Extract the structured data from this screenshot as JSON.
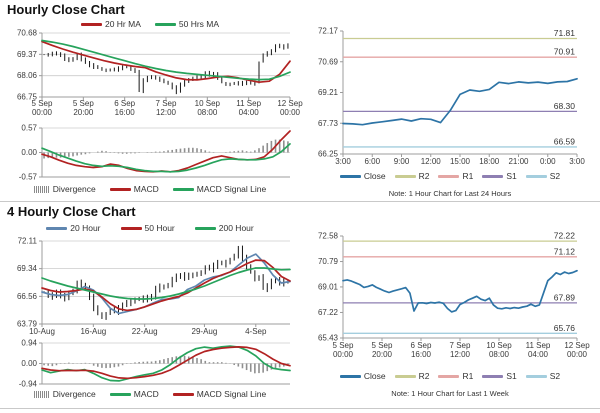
{
  "page": {
    "hourly_title": "Hourly Close Chart",
    "four_hourly_title": "4 Hourly Close Chart",
    "hourly_note": "Note: 1 Hour Chart for Last 24 Hours",
    "weekly_note": "Note: 1 Hour Chart for Last 1 Week"
  },
  "colors": {
    "red": "#b22222",
    "green": "#27a35c",
    "steel": "#5f86b0",
    "close": "#2d74a6",
    "r2": "#c9cc92",
    "r1": "#e4a6a4",
    "s1": "#8e7fb2",
    "s2": "#a4cede",
    "bars": "#8f8f8f",
    "candle": "#161616",
    "axis": "#9c9c9c",
    "grid": "#cccccc",
    "text": "#3a3a3a"
  },
  "chart_data": [
    {
      "id": "hourly-price",
      "type": "candlestick",
      "title": "Hourly Close Chart",
      "ylim": [
        66.75,
        70.68
      ],
      "yticks": [
        70.68,
        69.37,
        68.06,
        66.75
      ],
      "grid": true,
      "xticklabels": [
        [
          "5 Sep",
          "00:00"
        ],
        [
          "5 Sep",
          "20:00"
        ],
        [
          "6 Sep",
          "16:00"
        ],
        [
          "7 Sep",
          "12:00"
        ],
        [
          "10 Sep",
          "08:00"
        ],
        [
          "11 Sep",
          "04:00"
        ],
        [
          "12 Sep",
          "00:00"
        ]
      ],
      "legend": [
        {
          "label": "20 Hr MA",
          "color": "red"
        },
        {
          "label": "50 Hrs MA",
          "color": "green"
        }
      ],
      "wick": 0.14,
      "closes": [
        69.35,
        69.38,
        69.42,
        69.36,
        69.3,
        69.1,
        68.98,
        69.15,
        69.38,
        69.05,
        68.82,
        68.7,
        68.6,
        68.52,
        68.46,
        68.42,
        68.4,
        68.44,
        68.5,
        68.56,
        68.6,
        68.48,
        68.35,
        67.1,
        67.8,
        67.92,
        67.95,
        67.9,
        67.82,
        67.7,
        67.55,
        67.35,
        67.05,
        67.5,
        67.75,
        67.8,
        67.92,
        68.05,
        67.95,
        68.22,
        68.06,
        68.15,
        67.92,
        67.62,
        67.55,
        67.58,
        67.55,
        67.6,
        67.57,
        67.62,
        67.58,
        67.7,
        68.9,
        69.35,
        69.45,
        69.55,
        69.85,
        69.9,
        69.8,
        70.0
      ],
      "series": [
        {
          "name": "20 Hr MA",
          "color": "red",
          "values": [
            70.15,
            69.92,
            69.7,
            69.5,
            69.32,
            69.15,
            68.98,
            68.84,
            68.72,
            68.62,
            68.55,
            68.3,
            68.1,
            67.92,
            67.82,
            67.8,
            67.88,
            67.98,
            68.02,
            67.92,
            67.78,
            67.66,
            67.72,
            68.15,
            68.95
          ]
        },
        {
          "name": "50 Hrs MA",
          "color": "green",
          "values": [
            70.22,
            70.12,
            70.0,
            69.85,
            69.68,
            69.5,
            69.32,
            69.15,
            68.98,
            68.8,
            68.64,
            68.5,
            68.38,
            68.28,
            68.2,
            68.14,
            68.08,
            68.02,
            67.96,
            67.9,
            67.85,
            67.82,
            67.84,
            68.02,
            68.28
          ]
        }
      ]
    },
    {
      "id": "hourly-macd",
      "type": "macd",
      "ylim": [
        -0.57,
        0.57
      ],
      "yticks": [
        0.57,
        0,
        -0.57
      ],
      "grid": true,
      "legend": [
        {
          "label": "Divergence",
          "color": "bars",
          "swatch": "block"
        },
        {
          "label": "MACD",
          "color": "red"
        },
        {
          "label": "MACD Signal Line",
          "color": "green"
        }
      ],
      "divergence": [
        -0.14,
        -0.13,
        -0.12,
        -0.12,
        -0.12,
        -0.11,
        -0.1,
        -0.09,
        -0.07,
        -0.05,
        -0.04,
        -0.02,
        0.0,
        0.02,
        0.04,
        0.03,
        0.01,
        -0.01,
        -0.02,
        -0.03,
        -0.03,
        -0.02,
        -0.02,
        -0.01,
        0.0,
        0.01,
        0.01,
        0.02,
        0.02,
        0.03,
        0.05,
        0.06,
        0.08,
        0.09,
        0.1,
        0.11,
        0.11,
        0.1,
        0.08,
        0.05,
        0.02,
        0.01,
        0.0,
        0.0,
        0.01,
        0.02,
        0.03,
        0.04,
        0.05,
        0.03,
        0.02,
        0.05,
        0.1,
        0.16,
        0.22,
        0.27,
        0.3,
        0.3,
        0.28,
        0.26
      ],
      "series": [
        {
          "name": "MACD",
          "color": "red",
          "values": [
            -0.04,
            -0.1,
            -0.18,
            -0.25,
            -0.3,
            -0.33,
            -0.35,
            -0.33,
            -0.27,
            -0.3,
            -0.37,
            -0.42,
            -0.44,
            -0.45,
            -0.43,
            -0.45,
            -0.42,
            -0.36,
            -0.28,
            -0.2,
            -0.12,
            -0.08,
            -0.12,
            -0.16,
            -0.17,
            -0.16,
            -0.1,
            0.08,
            0.3,
            0.5
          ]
        },
        {
          "name": "MACD Signal Line",
          "color": "green",
          "values": [
            0.1,
            0.02,
            -0.06,
            -0.13,
            -0.2,
            -0.26,
            -0.3,
            -0.32,
            -0.31,
            -0.32,
            -0.35,
            -0.39,
            -0.42,
            -0.44,
            -0.44,
            -0.45,
            -0.44,
            -0.41,
            -0.36,
            -0.3,
            -0.23,
            -0.17,
            -0.15,
            -0.16,
            -0.17,
            -0.17,
            -0.15,
            -0.1,
            0.02,
            0.2
          ]
        }
      ]
    },
    {
      "id": "pivot-24h",
      "type": "line",
      "ylim": [
        66.25,
        72.17
      ],
      "yticks": [
        72.17,
        70.69,
        69.21,
        67.73,
        66.25
      ],
      "grid": false,
      "xticklabels": [
        "3:00",
        "6:00",
        "9:00",
        "12:00",
        "15:00",
        "18:00",
        "21:00",
        "0:00",
        "3:00"
      ],
      "pivots": [
        {
          "name": "R2",
          "value": 71.81,
          "color": "r2"
        },
        {
          "name": "R1",
          "value": 70.91,
          "color": "r1"
        },
        {
          "name": "S1",
          "value": 68.3,
          "color": "s1"
        },
        {
          "name": "S2",
          "value": 66.59,
          "color": "s2"
        }
      ],
      "legend": [
        {
          "label": "Close",
          "color": "close"
        },
        {
          "label": "R2",
          "color": "r2"
        },
        {
          "label": "R1",
          "color": "r1"
        },
        {
          "label": "S1",
          "color": "s1"
        },
        {
          "label": "S2",
          "color": "s2"
        }
      ],
      "series": [
        {
          "name": "Close",
          "color": "close",
          "values": [
            67.72,
            67.7,
            67.66,
            67.74,
            67.8,
            67.86,
            67.93,
            67.84,
            67.95,
            67.92,
            67.76,
            68.35,
            69.12,
            69.33,
            69.27,
            69.36,
            69.7,
            69.64,
            69.72,
            69.67,
            69.71,
            69.65,
            69.72,
            69.74,
            69.87
          ]
        }
      ],
      "note": "Note: 1 Hour Chart for Last 24 Hours"
    },
    {
      "id": "fourh-price",
      "type": "candlestick",
      "title": "4 Hourly Close Chart",
      "ylim": [
        63.79,
        72.11
      ],
      "yticks": [
        72.11,
        69.34,
        66.56,
        63.79
      ],
      "grid": true,
      "xticklabels": [
        "10-Aug",
        "16-Aug",
        "22-Aug",
        "29-Aug",
        "4-Sep"
      ],
      "xtickpos": [
        0,
        0.207,
        0.414,
        0.655,
        0.862
      ],
      "legend": [
        {
          "label": "20 Hour",
          "color": "steel"
        },
        {
          "label": "50 Hour",
          "color": "red"
        },
        {
          "label": "200 Hour",
          "color": "green"
        }
      ],
      "wick": 0.35,
      "closes": [
        67.0,
        66.7,
        66.55,
        66.9,
        66.6,
        66.4,
        66.85,
        67.2,
        68.0,
        67.6,
        67.3,
        66.5,
        65.4,
        64.8,
        64.55,
        64.9,
        65.2,
        65.05,
        65.35,
        65.6,
        65.9,
        66.15,
        66.35,
        66.2,
        66.4,
        66.3,
        66.45,
        67.3,
        67.6,
        67.5,
        67.8,
        68.3,
        68.55,
        68.4,
        68.65,
        68.55,
        68.75,
        68.95,
        69.0,
        69.4,
        69.3,
        69.6,
        69.9,
        69.75,
        70.1,
        70.3,
        70.6,
        71.3,
        70.4,
        69.5,
        69.0,
        68.4,
        68.6,
        67.3,
        67.6,
        68.0,
        68.2,
        67.9,
        68.15,
        68.05
      ],
      "series": [
        {
          "name": "20 Hour",
          "color": "steel",
          "values": [
            67.0,
            66.75,
            66.65,
            66.75,
            67.1,
            67.55,
            67.2,
            66.4,
            65.35,
            64.85,
            65.05,
            65.25,
            65.5,
            65.9,
            66.25,
            66.3,
            66.45,
            67.25,
            67.6,
            68.2,
            68.5,
            68.65,
            69.0,
            69.7,
            70.4,
            70.8,
            69.9,
            68.7,
            67.9,
            68.05
          ]
        },
        {
          "name": "50 Hour",
          "color": "red",
          "values": [
            67.4,
            67.15,
            67.0,
            67.05,
            67.15,
            67.3,
            67.1,
            66.5,
            65.8,
            65.3,
            65.15,
            65.25,
            65.5,
            65.8,
            66.1,
            66.35,
            66.55,
            66.9,
            67.4,
            67.9,
            68.35,
            68.7,
            69.0,
            69.4,
            69.85,
            70.2,
            70.15,
            69.45,
            68.55,
            68.1
          ]
        },
        {
          "name": "200 Hour",
          "color": "green",
          "values": [
            68.4,
            68.1,
            67.85,
            67.6,
            67.4,
            67.2,
            67.0,
            66.8,
            66.6,
            66.45,
            66.35,
            66.3,
            66.3,
            66.35,
            66.45,
            66.6,
            66.8,
            67.05,
            67.3,
            67.6,
            67.95,
            68.3,
            68.65,
            68.95,
            69.2,
            69.4,
            69.4,
            69.3,
            69.22,
            69.25
          ]
        }
      ]
    },
    {
      "id": "fourh-macd",
      "type": "macd",
      "ylim": [
        -0.94,
        0.94
      ],
      "yticks": [
        0.94,
        0,
        -0.94
      ],
      "grid": true,
      "legend": [
        {
          "label": "Divergence",
          "color": "bars",
          "swatch": "block"
        },
        {
          "label": "MACD",
          "color": "green"
        },
        {
          "label": "MACD Signal Line",
          "color": "red"
        }
      ],
      "divergence": [
        -0.08,
        -0.1,
        -0.12,
        -0.08,
        -0.02,
        0.02,
        0.04,
        0.02,
        -0.01,
        0.02,
        0.03,
        -0.02,
        -0.1,
        -0.15,
        -0.2,
        -0.21,
        -0.2,
        -0.17,
        -0.14,
        -0.08,
        -0.02,
        0.02,
        0.05,
        0.07,
        0.08,
        0.09,
        0.09,
        0.12,
        0.15,
        0.2,
        0.25,
        0.29,
        0.33,
        0.35,
        0.35,
        0.32,
        0.3,
        0.25,
        0.2,
        0.12,
        0.06,
        0.06,
        0.06,
        0.06,
        0.03,
        -0.01,
        -0.07,
        -0.14,
        -0.22,
        -0.3,
        -0.38,
        -0.45,
        -0.44,
        -0.42,
        -0.35,
        -0.28,
        -0.22,
        -0.18,
        -0.14,
        -0.1
      ],
      "series": [
        {
          "name": "MACD",
          "color": "green",
          "values": [
            -0.3,
            -0.42,
            -0.35,
            -0.28,
            -0.33,
            -0.28,
            -0.45,
            -0.65,
            -0.78,
            -0.8,
            -0.7,
            -0.6,
            -0.52,
            -0.45,
            -0.3,
            -0.05,
            0.25,
            0.5,
            0.68,
            0.75,
            0.7,
            0.76,
            0.8,
            0.75,
            0.6,
            0.35,
            0.0,
            -0.22,
            -0.28,
            -0.32
          ]
        },
        {
          "name": "MACD Signal Line",
          "color": "red",
          "values": [
            -0.22,
            -0.3,
            -0.33,
            -0.32,
            -0.32,
            -0.31,
            -0.35,
            -0.45,
            -0.58,
            -0.66,
            -0.68,
            -0.65,
            -0.6,
            -0.54,
            -0.45,
            -0.3,
            -0.08,
            0.15,
            0.38,
            0.55,
            0.64,
            0.7,
            0.74,
            0.76,
            0.74,
            0.65,
            0.45,
            0.2,
            0.0,
            -0.1
          ]
        }
      ]
    },
    {
      "id": "pivot-1w",
      "type": "line",
      "ylim": [
        65.43,
        72.58
      ],
      "yticks": [
        72.58,
        70.79,
        69.01,
        67.22,
        65.43
      ],
      "grid": false,
      "xticklabels": [
        [
          "5 Sep",
          "00:00"
        ],
        [
          "5 Sep",
          "20:00"
        ],
        [
          "6 Sep",
          "16:00"
        ],
        [
          "7 Sep",
          "12:00"
        ],
        [
          "10 Sep",
          "08:00"
        ],
        [
          "11 Sep",
          "04:00"
        ],
        [
          "12 Sep",
          "00:00"
        ]
      ],
      "pivots": [
        {
          "name": "R2",
          "value": 72.22,
          "color": "r2"
        },
        {
          "name": "R1",
          "value": 71.12,
          "color": "r1"
        },
        {
          "name": "S1",
          "value": 67.89,
          "color": "s1"
        },
        {
          "name": "S2",
          "value": 65.76,
          "color": "s2"
        }
      ],
      "legend": [
        {
          "label": "Close",
          "color": "close"
        },
        {
          "label": "R2",
          "color": "r2"
        },
        {
          "label": "R1",
          "color": "r1"
        },
        {
          "label": "S1",
          "color": "s1"
        },
        {
          "label": "S2",
          "color": "s2"
        }
      ],
      "series": [
        {
          "name": "Close",
          "color": "close",
          "values": [
            69.45,
            69.5,
            69.42,
            69.3,
            69.18,
            68.98,
            69.05,
            69.15,
            68.98,
            68.85,
            68.72,
            68.62,
            68.72,
            68.8,
            68.88,
            68.96,
            68.58,
            67.32,
            67.88,
            67.9,
            67.85,
            67.92,
            67.88,
            67.94,
            67.86,
            67.5,
            67.26,
            67.35,
            67.78,
            67.92,
            68.1,
            68.22,
            68.35,
            68.15,
            68.05,
            68.22,
            67.75,
            67.52,
            67.48,
            67.55,
            67.5,
            67.56,
            67.52,
            67.6,
            67.66,
            67.8,
            67.65,
            67.75,
            68.6,
            69.45,
            69.7,
            70.0,
            69.88,
            70.05,
            69.95,
            70.02,
            70.15
          ]
        }
      ],
      "note": "Note: 1 Hour Chart for Last 1 Week"
    }
  ]
}
